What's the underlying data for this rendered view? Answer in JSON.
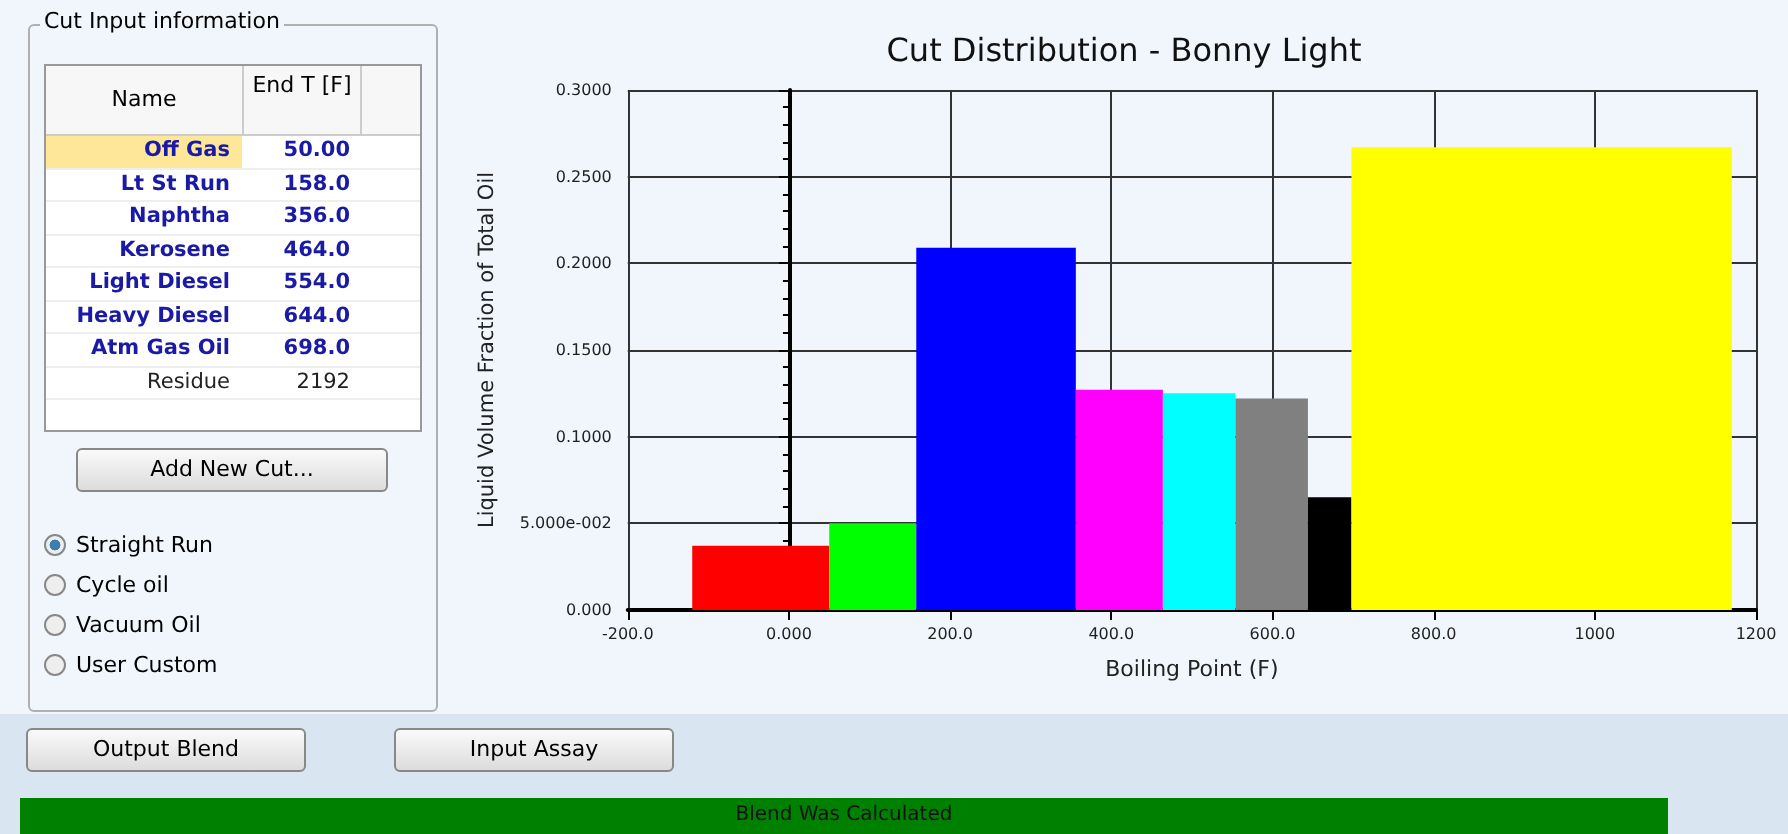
{
  "chart_data": [
    {
      "type": "other",
      "title": "Cut Input information",
      "annotations": [
        "Name",
        "End T [F]",
        "Off Gas",
        "50.00",
        "Lt St Run",
        "158.0",
        "Naphtha",
        "356.0",
        "Kerosene",
        "464.0",
        "Light Diesel",
        "554.0",
        "Heavy Diesel",
        "644.0",
        "Atm Gas Oil",
        "698.0",
        "Residue",
        "2192",
        "Add New Cut...",
        "Straight Run",
        "Cycle oil",
        "Vacuum Oil",
        "User Custom",
        "Output Blend",
        "Input Assay",
        "Blend Was Calculated"
      ]
    },
    {
      "type": "histogram",
      "title": "Cut Distribution - Bonny Light",
      "xlabel": "Boiling Point (F)",
      "ylabel": "Liquid Volume Fraction of Total Oil",
      "bins": [
        -120,
        50,
        158,
        356,
        464,
        554,
        644,
        698,
        1170
      ],
      "values": [
        0.037,
        0.05,
        0.209,
        0.127,
        0.125,
        0.122,
        0.065,
        0.267
      ],
      "colors": [
        "#ff0000",
        "#00ff00",
        "#0000ff",
        "#ff00ff",
        "#00ffff",
        "#808080",
        "#000000",
        "#ffff00"
      ],
      "xlim": [
        -200,
        1200
      ],
      "xticks": [
        {
          "value": -200,
          "label": "-200.0"
        },
        {
          "value": 0,
          "label": "0.000"
        },
        {
          "value": 200,
          "label": "200.0"
        },
        {
          "value": 400,
          "label": "400.0"
        },
        {
          "value": 600,
          "label": "600.0"
        },
        {
          "value": 800,
          "label": "800.0"
        },
        1000,
        1200
      ],
      "ylim": [
        0,
        0.3
      ],
      "yticks": [
        {
          "value": 0,
          "label": "0.000"
        },
        {
          "value": 0.05,
          "label": "5.000e-002"
        },
        {
          "value": 0.1,
          "label": "0.1000"
        },
        {
          "value": 0.15,
          "label": "0.1500"
        },
        {
          "value": 0.2,
          "label": "0.2000"
        },
        {
          "value": 0.25,
          "label": "0.2500"
        },
        {
          "value": 0.3,
          "label": "0.3000"
        }
      ],
      "grid": true
    }
  ]
}
